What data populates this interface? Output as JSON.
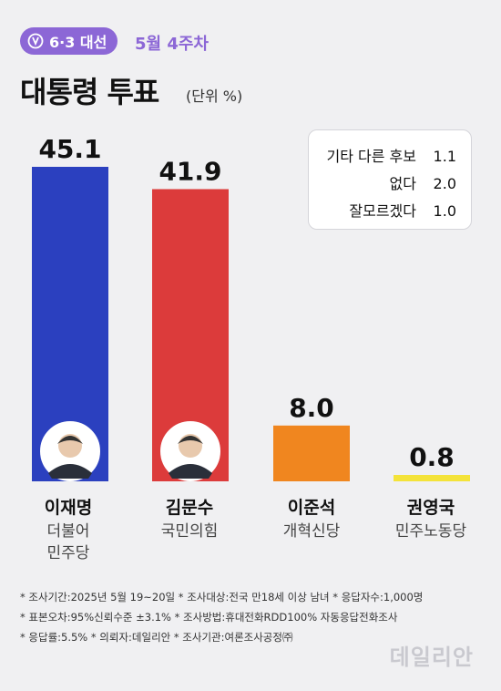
{
  "header": {
    "badge": "6·3 대선",
    "week": "5월 4주차",
    "title": "대통령 투표",
    "unit": "(단위 %)"
  },
  "other": [
    {
      "label": "기타 다른 후보",
      "value": "1.1"
    },
    {
      "label": "없다",
      "value": "2.0"
    },
    {
      "label": "잘모르겠다",
      "value": "1.0"
    }
  ],
  "colors": {
    "accent": "#8c67d6",
    "lee": "#2b40bf",
    "kim": "#dc3b3b",
    "lee_jun": "#f0861f",
    "kwon": "#f4e33a"
  },
  "chart_data": {
    "type": "bar",
    "title": "대통령 투표",
    "ylabel": "",
    "unit": "%",
    "categories": [
      "이재명",
      "김문수",
      "이준석",
      "권영국"
    ],
    "parties": [
      "더불어 민주당",
      "국민의힘",
      "개혁신당",
      "민주노동당"
    ],
    "values": [
      45.1,
      41.9,
      8.0,
      0.8
    ],
    "value_labels": [
      "45.1",
      "41.9",
      "8.0",
      "0.8"
    ],
    "colors": [
      "#2b40bf",
      "#dc3b3b",
      "#f0861f",
      "#f4e33a"
    ],
    "ylim": [
      0,
      45.1
    ],
    "grid": false
  },
  "candidates": [
    {
      "name": "이재명",
      "party_line1": "더불어",
      "party_line2": "민주당"
    },
    {
      "name": "김문수",
      "party_line1": "국민의힘",
      "party_line2": ""
    },
    {
      "name": "이준석",
      "party_line1": "개혁신당",
      "party_line2": ""
    },
    {
      "name": "권영국",
      "party_line1": "민주노동당",
      "party_line2": ""
    }
  ],
  "notes": {
    "line1": "* 조사기간:2025년 5월 19~20일  * 조사대상:전국 만18세 이상 남녀  * 응답자수:1,000명",
    "line2": "* 표본오차:95%신뢰수준 ±3.1%  * 조사방법:휴대전화RDD100% 자동응답전화조사",
    "line3": "* 응답률:5.5%  * 의뢰자:데일리안  * 조사기관:여론조사공정㈜"
  },
  "watermark": "데일리안"
}
